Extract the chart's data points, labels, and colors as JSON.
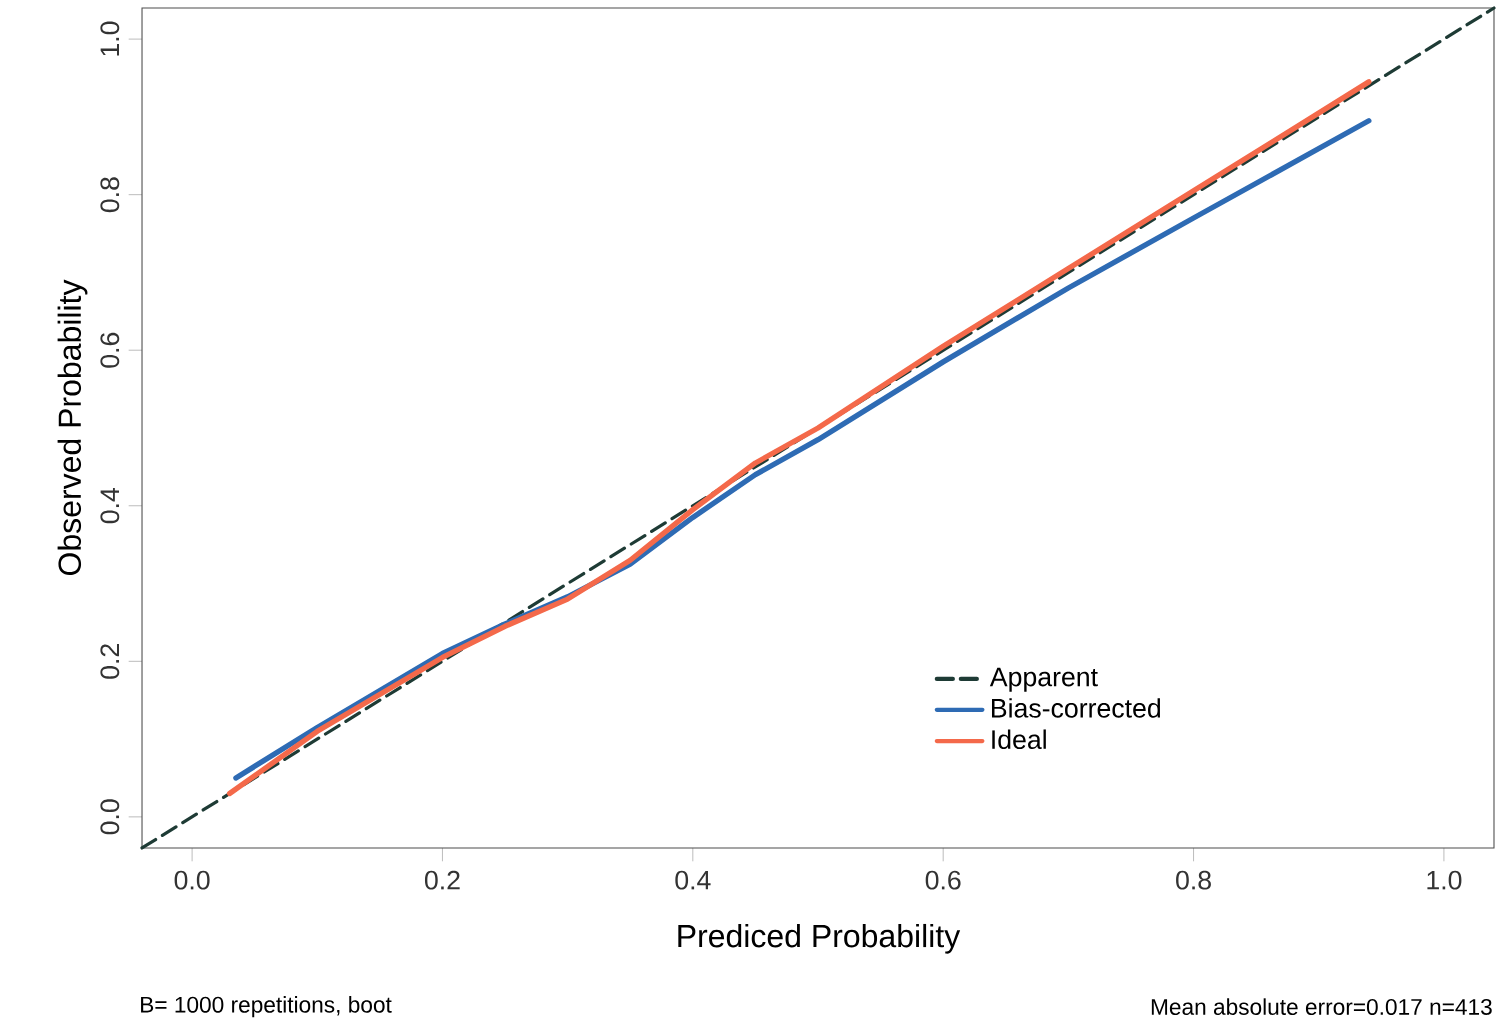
{
  "chart_data": {
    "type": "line",
    "xlabel": "Prediced Probability",
    "ylabel": "Observed Probability",
    "xlim": [
      -0.04,
      1.04
    ],
    "ylim": [
      -0.04,
      1.04
    ],
    "xticks": [
      {
        "value": 0,
        "label": "0.0"
      },
      {
        "value": 0.2,
        "label": "0.2"
      },
      {
        "value": 0.4,
        "label": "0.4"
      },
      {
        "value": 0.6,
        "label": "0.6"
      },
      {
        "value": 0.8,
        "label": "0.8"
      },
      {
        "value": 1,
        "label": "1.0"
      }
    ],
    "yticks": [
      {
        "value": 0,
        "label": "0.0"
      },
      {
        "value": 0.2,
        "label": "0.2"
      },
      {
        "value": 0.4,
        "label": "0.4"
      },
      {
        "value": 0.6,
        "label": "0.6"
      },
      {
        "value": 0.8,
        "label": "0.8"
      },
      {
        "value": 1,
        "label": "1.0"
      }
    ],
    "grid": false,
    "legend": "bottom right",
    "series": [
      {
        "name": "Apparent",
        "color": "#1e3b35",
        "line_style": "dashed",
        "x": [
          -0.04,
          1.04
        ],
        "values": [
          -0.04,
          1.04
        ]
      },
      {
        "name": "Bias-corrected",
        "color": "#2e6bb4",
        "line_style": "solid",
        "x": [
          0.035,
          0.1,
          0.2,
          0.25,
          0.3,
          0.35,
          0.4,
          0.45,
          0.5,
          0.6,
          0.7,
          0.8,
          0.94
        ],
        "values": [
          0.05,
          0.115,
          0.21,
          0.248,
          0.283,
          0.325,
          0.385,
          0.44,
          0.485,
          0.585,
          0.68,
          0.77,
          0.895
        ]
      },
      {
        "name": "Ideal",
        "color": "#f4694a",
        "line_style": "solid",
        "x": [
          0.03,
          0.1,
          0.2,
          0.25,
          0.3,
          0.35,
          0.4,
          0.45,
          0.5,
          0.6,
          0.7,
          0.8,
          0.94
        ],
        "values": [
          0.03,
          0.11,
          0.205,
          0.245,
          0.28,
          0.33,
          0.395,
          0.455,
          0.5,
          0.605,
          0.705,
          0.805,
          0.945
        ]
      }
    ],
    "annotations": [
      "B= 1000 repetitions, boot",
      "Mean absolute error=0.017 n=413"
    ]
  }
}
